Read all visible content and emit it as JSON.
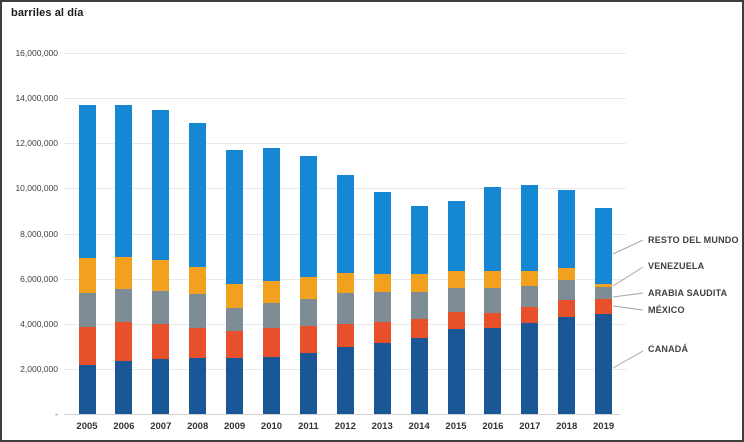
{
  "title": "barriles al día",
  "chart_data": {
    "type": "bar",
    "stacked": true,
    "title": "barriles al día",
    "unit": "barriles al día",
    "categories": [
      "2005",
      "2006",
      "2007",
      "2008",
      "2009",
      "2010",
      "2011",
      "2012",
      "2013",
      "2014",
      "2015",
      "2016",
      "2017",
      "2018",
      "2019"
    ],
    "y_tick_labels": [
      "16,000,000",
      "14,000,000",
      "12,000,000",
      "10,000,000",
      "8,000,000",
      "6,000,000",
      "4,000,000",
      "2,000,000",
      "-"
    ],
    "ylim": [
      0,
      16000000
    ],
    "y_step": 2000000,
    "grid": true,
    "legend_position": "right",
    "series": [
      {
        "id": "canada",
        "name": "CANADÁ",
        "color": "#1A5796",
        "values": [
          2181000,
          2353000,
          2455000,
          2493000,
          2479000,
          2535000,
          2707000,
          2959000,
          3142000,
          3388000,
          3762000,
          3815000,
          4054000,
          4292000,
          4420000
        ]
      },
      {
        "id": "mexico",
        "name": "MÉXICO",
        "color": "#E8502B",
        "values": [
          1662000,
          1705000,
          1532000,
          1302000,
          1210000,
          1284000,
          1206000,
          1034000,
          919000,
          842000,
          758000,
          669000,
          675000,
          758000,
          664000
        ]
      },
      {
        "id": "arabia-saudita",
        "name": "ARABIA SAUDITA",
        "color": "#7E8C96",
        "values": [
          1537000,
          1463000,
          1485000,
          1529000,
          1004000,
          1096000,
          1195000,
          1364000,
          1329000,
          1166000,
          1056000,
          1106000,
          957000,
          903000,
          527000
        ]
      },
      {
        "id": "venezuela",
        "name": "VENEZUELA",
        "color": "#F1A11E",
        "values": [
          1529000,
          1419000,
          1361000,
          1189000,
          1063000,
          988000,
          951000,
          906000,
          806000,
          791000,
          776000,
          741000,
          673000,
          506000,
          150000
        ]
      },
      {
        "id": "resto-del-mundo",
        "name": "RESTO DEL MUNDO",
        "color": "#1587D3",
        "values": [
          6805000,
          6767000,
          6635000,
          6402000,
          5935000,
          5890000,
          5377000,
          4335000,
          3663000,
          3054000,
          3097000,
          3724000,
          3781000,
          3484000,
          3380000
        ]
      }
    ],
    "totals": [
      13714000,
      13707000,
      13468000,
      12915000,
      11691000,
      11793000,
      11436000,
      10598000,
      9859000,
      9241000,
      9449000,
      10055000,
      10140000,
      9943000,
      9141000
    ]
  },
  "legend": {
    "items": [
      {
        "label": "RESTO DEL MUNDO"
      },
      {
        "label": "VENEZUELA"
      },
      {
        "label": "ARABIA SAUDITA"
      },
      {
        "label": "MÉXICO"
      },
      {
        "label": "CANADÁ"
      }
    ]
  }
}
